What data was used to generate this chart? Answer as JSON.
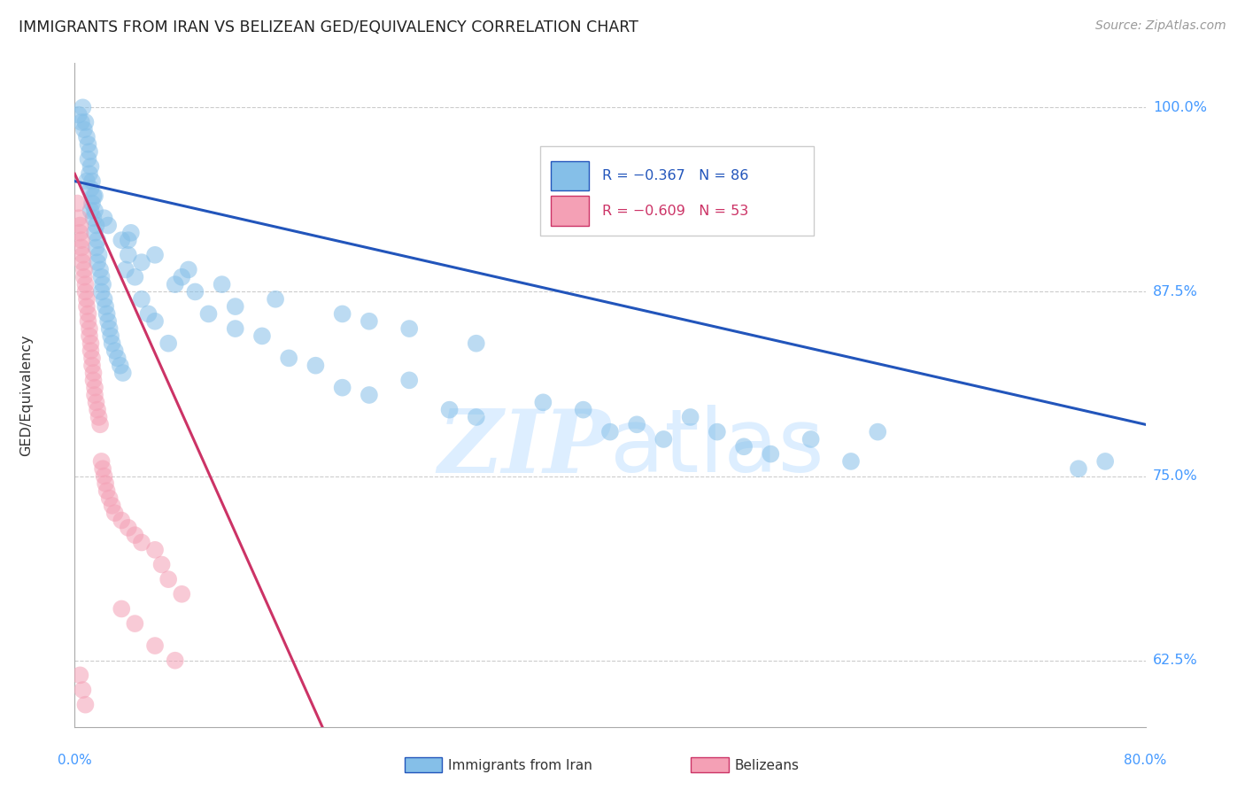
{
  "title": "IMMIGRANTS FROM IRAN VS BELIZEAN GED/EQUIVALENCY CORRELATION CHART",
  "source": "Source: ZipAtlas.com",
  "ylabel_ticks": [
    62.5,
    75.0,
    87.5,
    100.0
  ],
  "ylabel_labels": [
    "62.5%",
    "75.0%",
    "87.5%",
    "100.0%"
  ],
  "xmin": 0.0,
  "xmax": 80.0,
  "ymin": 58.0,
  "ymax": 103.0,
  "ylabel": "GED/Equivalency",
  "xlabel_bottom1": "0.0%",
  "xlabel_bottom2": "80.0%",
  "legend_label1": "Immigrants from Iran",
  "legend_label2": "Belizeans",
  "blue_scatter_x": [
    0.3,
    0.5,
    0.6,
    0.7,
    0.8,
    0.9,
    1.0,
    1.0,
    1.1,
    1.1,
    1.2,
    1.2,
    1.3,
    1.3,
    1.4,
    1.4,
    1.5,
    1.5,
    1.6,
    1.6,
    1.7,
    1.7,
    1.8,
    1.9,
    2.0,
    2.0,
    2.1,
    2.2,
    2.3,
    2.4,
    2.5,
    2.6,
    2.7,
    2.8,
    3.0,
    3.2,
    3.4,
    3.6,
    3.8,
    4.0,
    4.2,
    4.5,
    5.0,
    5.5,
    6.0,
    7.0,
    8.0,
    9.0,
    10.0,
    12.0,
    14.0,
    16.0,
    18.0,
    20.0,
    22.0,
    25.0,
    28.0,
    30.0,
    35.0,
    38.0,
    40.0,
    42.0,
    44.0,
    46.0,
    48.0,
    50.0,
    52.0,
    55.0,
    58.0,
    60.0,
    1.2,
    2.5,
    4.0,
    6.0,
    8.5,
    11.0,
    15.0,
    20.0,
    25.0,
    30.0,
    0.9,
    1.5,
    2.2,
    3.5,
    5.0,
    7.5,
    12.0,
    22.0,
    75.0,
    77.0
  ],
  "blue_scatter_y": [
    99.5,
    99.0,
    100.0,
    98.5,
    99.0,
    98.0,
    97.5,
    96.5,
    97.0,
    95.5,
    96.0,
    94.5,
    95.0,
    93.5,
    94.0,
    92.5,
    93.0,
    91.5,
    92.0,
    90.5,
    91.0,
    89.5,
    90.0,
    89.0,
    88.5,
    87.5,
    88.0,
    87.0,
    86.5,
    86.0,
    85.5,
    85.0,
    84.5,
    84.0,
    83.5,
    83.0,
    82.5,
    82.0,
    89.0,
    90.0,
    91.5,
    88.5,
    87.0,
    86.0,
    85.5,
    84.0,
    88.5,
    87.5,
    86.0,
    85.0,
    84.5,
    83.0,
    82.5,
    81.0,
    80.5,
    81.5,
    79.5,
    79.0,
    80.0,
    79.5,
    78.0,
    78.5,
    77.5,
    79.0,
    78.0,
    77.0,
    76.5,
    77.5,
    76.0,
    78.0,
    93.0,
    92.0,
    91.0,
    90.0,
    89.0,
    88.0,
    87.0,
    86.0,
    85.0,
    84.0,
    95.0,
    94.0,
    92.5,
    91.0,
    89.5,
    88.0,
    86.5,
    85.5,
    75.5,
    76.0
  ],
  "pink_scatter_x": [
    0.2,
    0.3,
    0.4,
    0.4,
    0.5,
    0.5,
    0.6,
    0.6,
    0.7,
    0.7,
    0.8,
    0.8,
    0.9,
    0.9,
    1.0,
    1.0,
    1.1,
    1.1,
    1.2,
    1.2,
    1.3,
    1.3,
    1.4,
    1.4,
    1.5,
    1.5,
    1.6,
    1.7,
    1.8,
    1.9,
    2.0,
    2.1,
    2.2,
    2.3,
    2.4,
    2.6,
    2.8,
    3.0,
    3.5,
    4.0,
    4.5,
    5.0,
    6.0,
    6.5,
    7.0,
    8.0,
    3.5,
    4.5,
    6.0,
    7.5,
    0.4,
    0.6,
    0.8
  ],
  "pink_scatter_y": [
    93.5,
    92.5,
    92.0,
    91.5,
    91.0,
    90.5,
    90.0,
    89.5,
    89.0,
    88.5,
    88.0,
    87.5,
    87.0,
    86.5,
    86.0,
    85.5,
    85.0,
    84.5,
    84.0,
    83.5,
    83.0,
    82.5,
    82.0,
    81.5,
    81.0,
    80.5,
    80.0,
    79.5,
    79.0,
    78.5,
    76.0,
    75.5,
    75.0,
    74.5,
    74.0,
    73.5,
    73.0,
    72.5,
    72.0,
    71.5,
    71.0,
    70.5,
    70.0,
    69.0,
    68.0,
    67.0,
    66.0,
    65.0,
    63.5,
    62.5,
    61.5,
    60.5,
    59.5
  ],
  "blue_line_x": [
    0.0,
    80.0
  ],
  "blue_line_y": [
    95.0,
    78.5
  ],
  "pink_line_x": [
    0.0,
    18.5
  ],
  "pink_line_y": [
    95.5,
    58.0
  ],
  "scatter_color_blue": "#85bfe8",
  "scatter_color_pink": "#f4a0b5",
  "line_color_blue": "#2255bb",
  "line_color_pink": "#cc3366",
  "background_color": "#ffffff",
  "grid_color": "#cccccc",
  "watermark_zip": "ZIP",
  "watermark_atlas": "atlas",
  "watermark_color": "#ddeeff"
}
